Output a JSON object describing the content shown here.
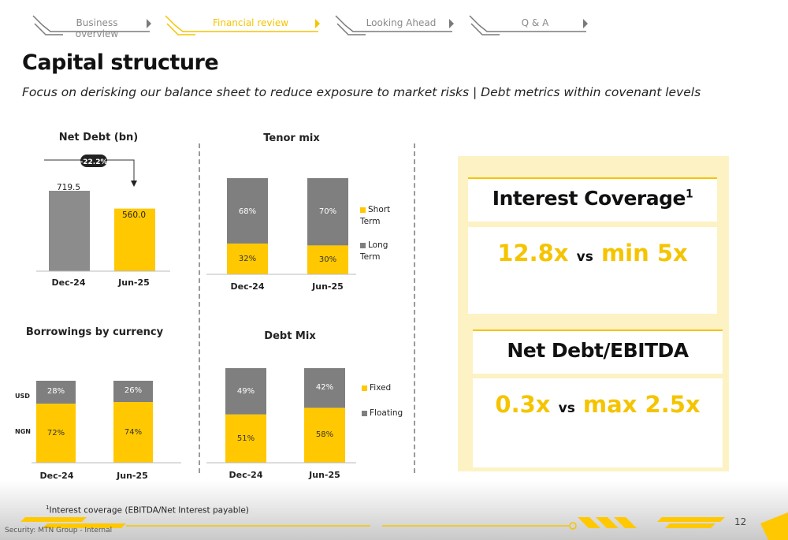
{
  "nav": {
    "tabs": [
      {
        "label": "Business overview",
        "active": false
      },
      {
        "label": "Financial review",
        "active": true
      },
      {
        "label": "Looking Ahead",
        "active": false
      },
      {
        "label": "Q & A",
        "active": false
      }
    ]
  },
  "header": {
    "title": "Capital structure",
    "subtitle": "Focus on derisking our balance sheet to reduce exposure to market risks | Debt metrics within covenant levels"
  },
  "net_debt": {
    "title": "Net Debt (bn)",
    "change_badge": "-22.2%",
    "categories": [
      "Dec-24",
      "Jun-25"
    ],
    "value_labels": [
      "719.5",
      "560.0"
    ]
  },
  "tenor_mix": {
    "title": "Tenor mix",
    "categories": [
      "Dec-24",
      "Jun-25"
    ],
    "top_labels": [
      "68%",
      "70%"
    ],
    "bottom_labels": [
      "32%",
      "30%"
    ],
    "legend": [
      "Short Term",
      "Long Term"
    ]
  },
  "borrowings": {
    "title": "Borrowings by currency",
    "categories": [
      "Dec-24",
      "Jun-25"
    ],
    "row_labels": [
      "USD",
      "NGN"
    ],
    "top_labels": [
      "28%",
      "26%"
    ],
    "bottom_labels": [
      "72%",
      "74%"
    ]
  },
  "debt_mix": {
    "title": "Debt Mix",
    "categories": [
      "Dec-24",
      "Jun-25"
    ],
    "top_labels": [
      "49%",
      "42%"
    ],
    "bottom_labels": [
      "51%",
      "58%"
    ],
    "legend": [
      "Fixed",
      "Floating"
    ]
  },
  "metrics": {
    "interest_coverage": {
      "title": "Interest Coverage",
      "sup": "1",
      "value": "12.8x",
      "vs": "vs",
      "limit": "min 5x"
    },
    "net_debt_ebitda": {
      "title": "Net Debt/EBITDA",
      "value": "0.3x",
      "vs": "vs",
      "limit": "max 2.5x"
    }
  },
  "footer": {
    "footnote_sup": "1",
    "footnote": "Interest coverage (EBITDA/Net Interest payable)",
    "page_number": "12",
    "security": "Security: MTN Group - Internal"
  },
  "colors": {
    "accent": "#f5c400",
    "grey": "#8a8a8a",
    "dark_grey": "#7a7a7a"
  },
  "chart_data": [
    {
      "type": "bar",
      "title": "Net Debt (bn)",
      "categories": [
        "Dec-24",
        "Jun-25"
      ],
      "values": [
        719.5,
        560.0
      ],
      "annotation": "-22.2%"
    },
    {
      "type": "bar",
      "title": "Tenor mix",
      "categories": [
        "Dec-24",
        "Jun-25"
      ],
      "series": [
        {
          "name": "Short Term",
          "values": [
            32,
            30
          ]
        },
        {
          "name": "Long Term",
          "values": [
            68,
            70
          ]
        }
      ]
    },
    {
      "type": "bar",
      "title": "Borrowings by currency",
      "categories": [
        "Dec-24",
        "Jun-25"
      ],
      "series": [
        {
          "name": "NGN",
          "values": [
            72,
            74
          ]
        },
        {
          "name": "USD",
          "values": [
            28,
            26
          ]
        }
      ]
    },
    {
      "type": "bar",
      "title": "Debt Mix",
      "categories": [
        "Dec-24",
        "Jun-25"
      ],
      "series": [
        {
          "name": "Fixed",
          "values": [
            51,
            58
          ]
        },
        {
          "name": "Floating",
          "values": [
            49,
            42
          ]
        }
      ]
    }
  ]
}
